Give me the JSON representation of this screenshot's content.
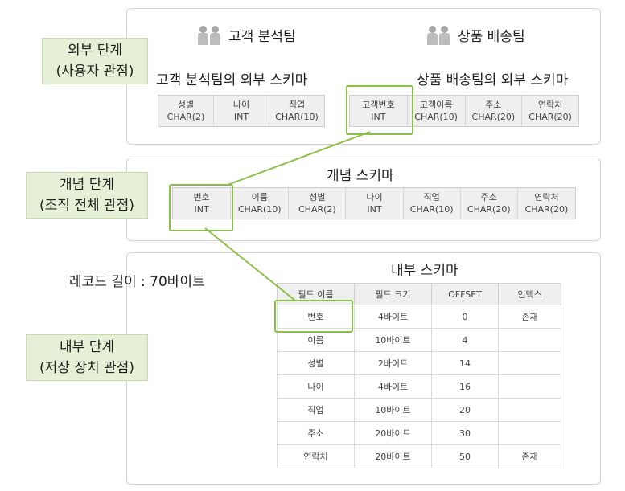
{
  "levels": {
    "external": [
      "외부 단계",
      "(사용자 관점)"
    ],
    "conceptual": [
      "개념 단계",
      "(조직 전체 관점)"
    ],
    "internal": [
      "내부 단계",
      "(저장 장치 관점)"
    ]
  },
  "external_schema": {
    "team_left": "고객 분석팀",
    "team_right": "상품 배송팀",
    "title_left": "고객 분석팀의 외부 스키마",
    "title_right": "상품 배송팀의 외부 스키마",
    "left_fields": [
      {
        "name": "성별",
        "type": "CHAR(2)"
      },
      {
        "name": "나이",
        "type": "INT"
      },
      {
        "name": "직업",
        "type": "CHAR(10)"
      }
    ],
    "right_fields": [
      {
        "name": "고객번호",
        "type": "INT"
      },
      {
        "name": "고객이름",
        "type": "CHAR(10)"
      },
      {
        "name": "주소",
        "type": "CHAR(20)"
      },
      {
        "name": "연락처",
        "type": "CHAR(20)"
      }
    ]
  },
  "conceptual_schema": {
    "title": "개념 스키마",
    "fields": [
      {
        "name": "번호",
        "type": "INT"
      },
      {
        "name": "이름",
        "type": "CHAR(10)"
      },
      {
        "name": "성별",
        "type": "CHAR(2)"
      },
      {
        "name": "나이",
        "type": "INT"
      },
      {
        "name": "직업",
        "type": "CHAR(10)"
      },
      {
        "name": "주소",
        "type": "CHAR(20)"
      },
      {
        "name": "연락처",
        "type": "CHAR(20)"
      }
    ]
  },
  "internal_schema": {
    "title": "내부 스키마",
    "record_length": "레코드 길이 : 70바이트",
    "headers": [
      "필드 이름",
      "필드 크기",
      "OFFSET",
      "인덱스"
    ],
    "rows": [
      [
        "번호",
        "4바이트",
        "0",
        "존재"
      ],
      [
        "이름",
        "10바이트",
        "4",
        ""
      ],
      [
        "성별",
        "2바이트",
        "14",
        ""
      ],
      [
        "나이",
        "4바이트",
        "16",
        ""
      ],
      [
        "직업",
        "10바이트",
        "20",
        ""
      ],
      [
        "주소",
        "20바이트",
        "30",
        ""
      ],
      [
        "연락처",
        "20바이트",
        "50",
        "존재"
      ]
    ]
  },
  "colors": {
    "highlight": "#8cbf4a",
    "label_bg": "#e6f0d6",
    "field_bg": "#efefef"
  }
}
